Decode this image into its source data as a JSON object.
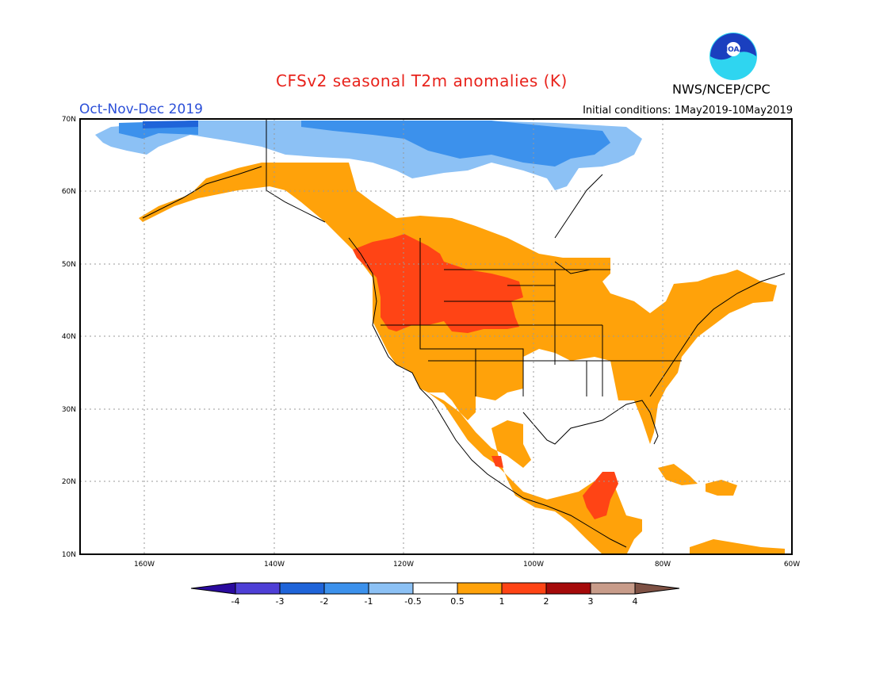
{
  "title": "CFSv2 seasonal T2m anomalies (K)",
  "season": "Oct-Nov-Dec 2019",
  "initial_conditions": "Initial conditions: 1May2019-10May2019",
  "agency": "NWS/NCEP/CPC",
  "logo_text": "NOAA",
  "map": {
    "lat_labels": [
      "70N",
      "60N",
      "50N",
      "40N",
      "30N",
      "20N",
      "10N"
    ],
    "lon_labels": [
      "160W",
      "140W",
      "120W",
      "100W",
      "80W",
      "60W"
    ],
    "lon_range": [
      "172W",
      "62W"
    ],
    "lat_range": [
      "10N",
      "70N"
    ],
    "gridlines": "dotted",
    "regions": [
      {
        "name": "Arctic Canada / Alaska north slope",
        "category": "-1 to -0.5"
      },
      {
        "name": "Arctic Canada north",
        "category": "-2 to -1"
      },
      {
        "name": "Western Canada and western/central US",
        "category": "0.5 to 1"
      },
      {
        "name": "Pacific Northwest and northern Rockies",
        "category": "1 to 2"
      },
      {
        "name": "South-central US",
        "category": "-0.5 to 0.5"
      },
      {
        "name": "Eastern US and Atlantic Canada",
        "category": "0.5 to 1"
      },
      {
        "name": "Mexico",
        "category": "0.5 to 1"
      },
      {
        "name": "Yucatan / Guatemala",
        "category": "1 to 2"
      },
      {
        "name": "Caribbean",
        "category": "0.5 to 1"
      }
    ]
  },
  "colorbar": {
    "ticks": [
      "-4",
      "-3",
      "-2",
      "-1",
      "-0.5",
      "0.5",
      "1",
      "2",
      "3",
      "4"
    ],
    "colors": [
      "#2a0a9e",
      "#4e3fd6",
      "#1f64d9",
      "#3c91ec",
      "#8cc1f5",
      "#ffffff",
      "#ffa20a",
      "#ff4415",
      "#a50a0a",
      "#c89c8a",
      "#7e5144"
    ]
  }
}
